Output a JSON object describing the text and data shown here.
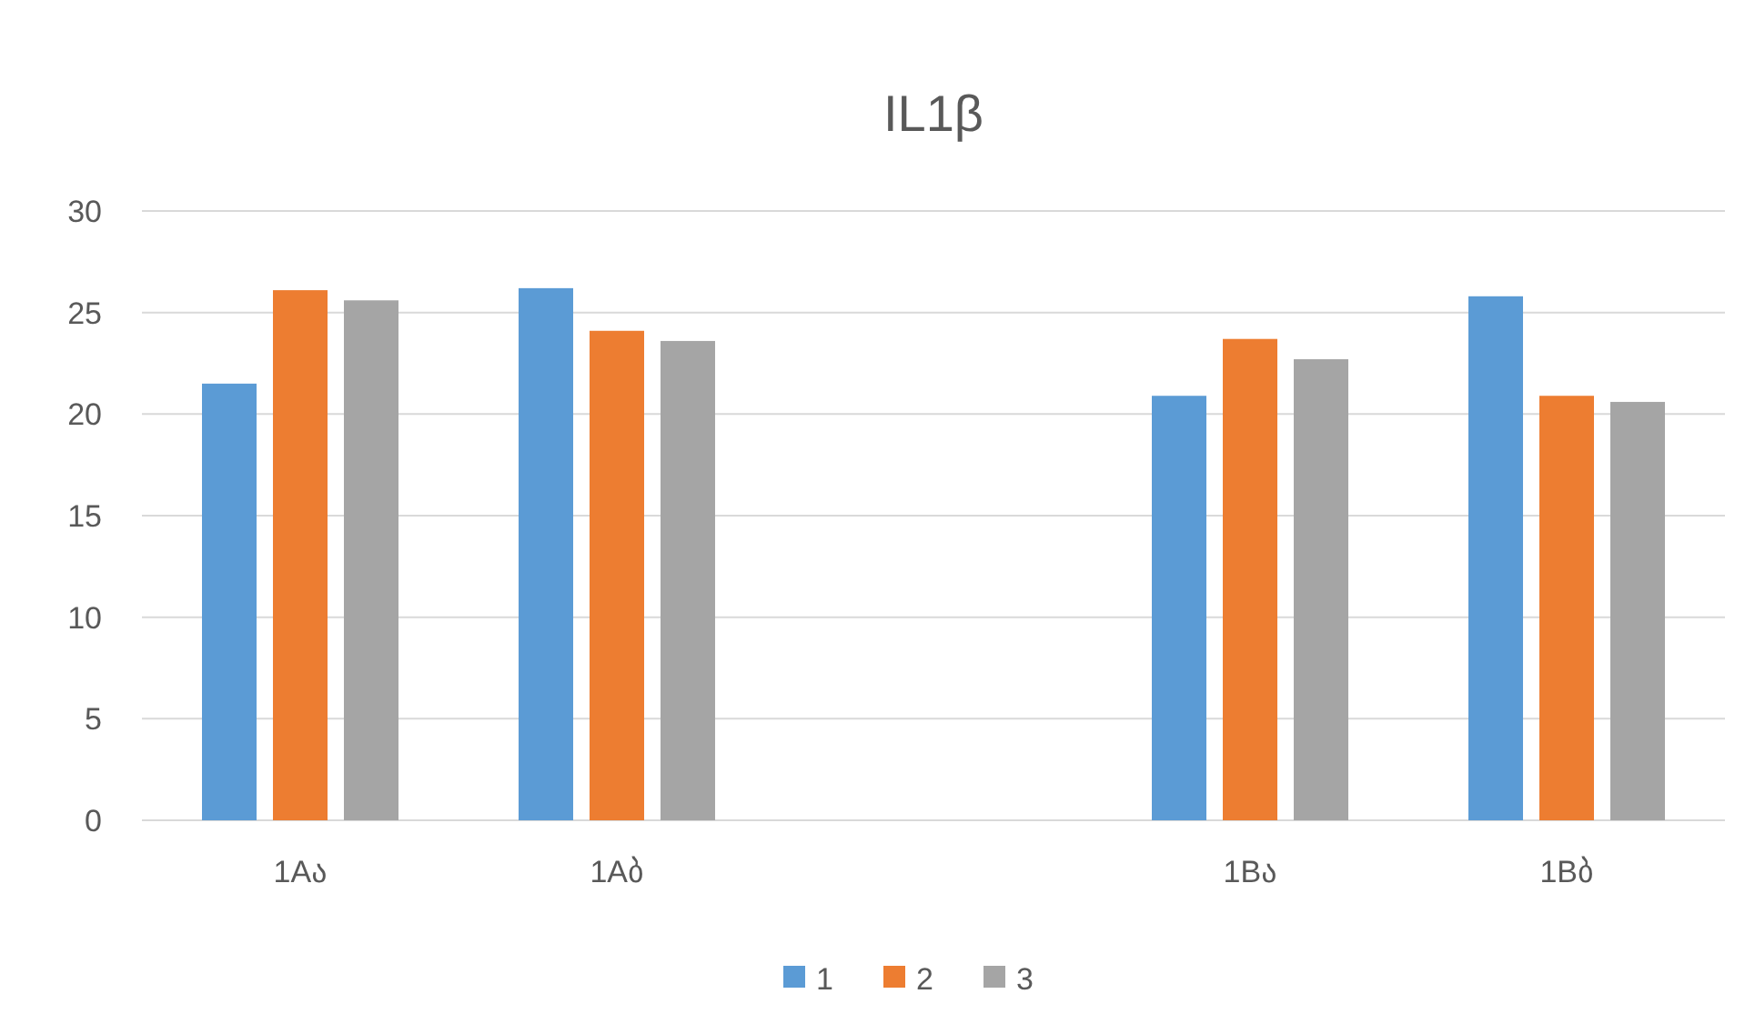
{
  "chart_data": {
    "type": "bar",
    "title": "IL1β",
    "categories": [
      "1Aა",
      "1Aბ",
      null,
      "1Bა",
      "1Bბ"
    ],
    "series": [
      {
        "name": "1",
        "color": "#5b9bd5",
        "values": [
          21.5,
          26.2,
          null,
          20.9,
          25.8
        ]
      },
      {
        "name": "2",
        "color": "#ed7d31",
        "values": [
          26.1,
          24.1,
          null,
          23.7,
          20.9
        ]
      },
      {
        "name": "3",
        "color": "#a5a5a5",
        "values": [
          25.6,
          23.6,
          null,
          22.7,
          20.6
        ]
      }
    ],
    "ylim": [
      0,
      30
    ],
    "yticks": [
      0,
      5,
      10,
      15,
      20,
      25,
      30
    ],
    "grid": "y",
    "legend": "bottom"
  }
}
